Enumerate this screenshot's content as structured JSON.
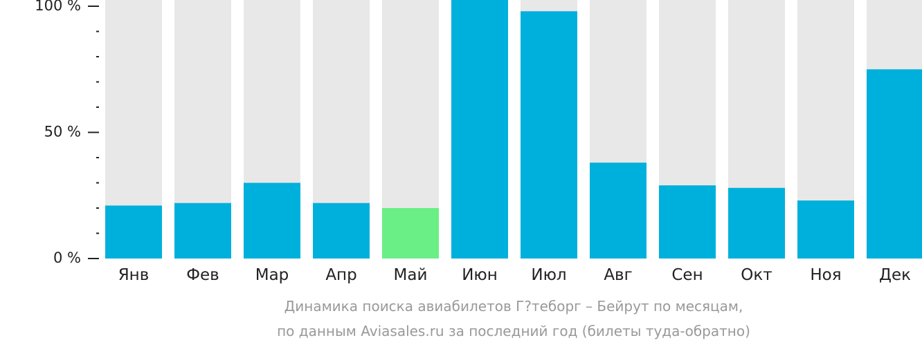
{
  "chart_data": {
    "type": "bar",
    "categories": [
      "Янв",
      "Фев",
      "Мар",
      "Апр",
      "Май",
      "Июн",
      "Июл",
      "Авг",
      "Сен",
      "Окт",
      "Ноя",
      "Дек"
    ],
    "values": [
      21,
      22,
      30,
      22,
      20,
      100,
      98,
      38,
      29,
      28,
      23,
      75
    ],
    "highlight_index": 4,
    "ylim": [
      0,
      100
    ],
    "yticks": [
      {
        "value": 0,
        "label": "0 %"
      },
      {
        "value": 50,
        "label": "50 %"
      },
      {
        "value": 100,
        "label": "100 %"
      }
    ],
    "minor_ytick_step": 10,
    "title_line1": "Динамика поиска авиабилетов Г?теборг – Бейрут по месяцам,",
    "title_line2": "по данным Aviasales.ru за последний год (билеты туда-обратно)",
    "colors": {
      "bar": "#00b0dc",
      "highlight": "#6aef86",
      "background_bar": "#e8e8e8",
      "axis": "#222222",
      "caption": "#999999"
    }
  }
}
